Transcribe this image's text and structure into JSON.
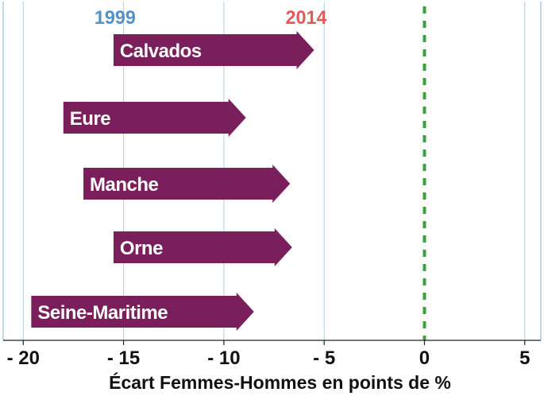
{
  "chart_data": {
    "type": "bar",
    "subtype": "arrow-range",
    "title": "",
    "xlabel": "Écart Femmes-Hommes en points de %",
    "ylabel": "",
    "xlim": [
      -21,
      5.8
    ],
    "x_ticks": [
      -20,
      -15,
      -10,
      -5,
      0,
      5
    ],
    "x_tick_labels": [
      "- 20",
      "- 15",
      "- 10",
      "- 5",
      "0",
      "5"
    ],
    "grid": true,
    "reference_line": {
      "x": 0,
      "style": "dashed",
      "color": "#3aa23a"
    },
    "legend": {
      "start_label": "1999",
      "end_label": "2014",
      "placement": "top"
    },
    "categories": [
      "Calvados",
      "Eure",
      "Manche",
      "Orne",
      "Seine-Maritime"
    ],
    "series": [
      {
        "name": "1999",
        "values": [
          -15.5,
          -18.0,
          -17.0,
          -15.5,
          -19.6
        ]
      },
      {
        "name": "2014",
        "values": [
          -5.5,
          -8.9,
          -6.7,
          -6.6,
          -8.5
        ]
      }
    ],
    "colors": {
      "arrow": "#7a1f5c",
      "label": "#ffffff",
      "grid": "#a9d3e8",
      "legend_start": "#4f93c9",
      "legend_end": "#e05b5b",
      "frame": "#7fb6d6"
    }
  }
}
